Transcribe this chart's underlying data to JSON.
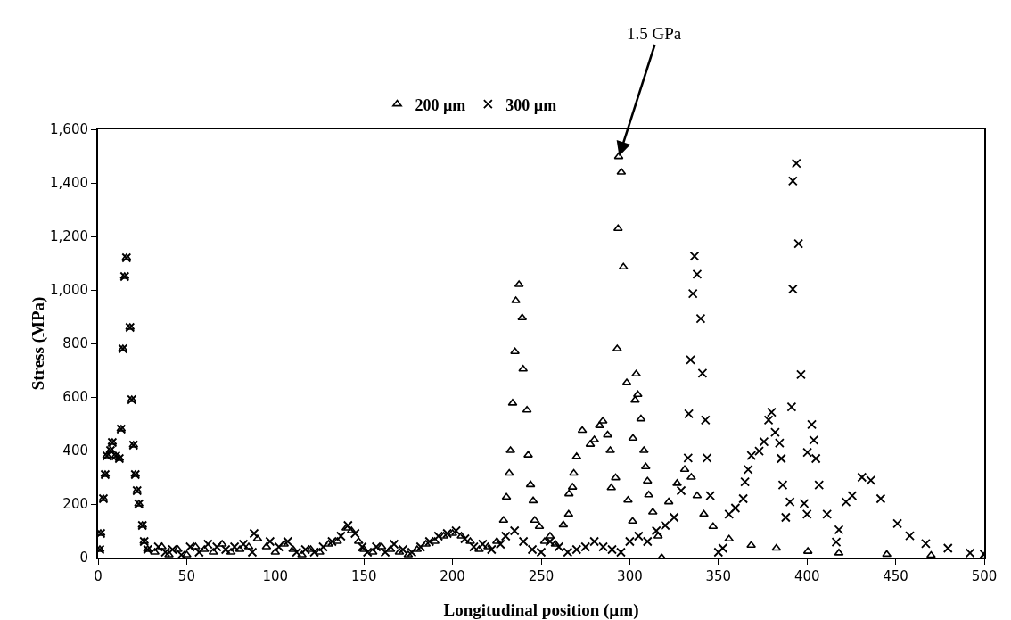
{
  "chart_data": {
    "type": "scatter",
    "xlabel": "Longitudinal position (µm)",
    "ylabel": "Stress (MPa)",
    "xlim": [
      0,
      500
    ],
    "xticks": [
      0,
      50,
      100,
      150,
      200,
      250,
      300,
      350,
      400,
      450,
      500
    ],
    "ylim": [
      0,
      1600
    ],
    "yticks": [
      0,
      200,
      400,
      600,
      800,
      {
        "value": 1000,
        "label": "1,000"
      },
      {
        "value": 1200,
        "label": "1,200"
      },
      {
        "value": 1400,
        "label": "1,400"
      },
      {
        "value": 1600,
        "label": "1,600"
      }
    ],
    "legend": "top",
    "grid": false,
    "annotations": [
      {
        "text": "1.5 GPa",
        "x": 294,
        "y": 1500
      }
    ],
    "series": [
      {
        "name": "200 µm",
        "color": "#000000",
        "marker": "triangle",
        "x": [
          228.8,
          230.4,
          232,
          232.7,
          233.9,
          235.2,
          235.7,
          237.5,
          239.3,
          239.8,
          242,
          242.7,
          244,
          245.5,
          246.4,
          249,
          252,
          255,
          258,
          262.5,
          265.5,
          265.7,
          267.7,
          268.4,
          270,
          273.2,
          277.7,
          280,
          283,
          284.8,
          287.5,
          289,
          289.6,
          292,
          292.9,
          293.4,
          293.75,
          295.2,
          296.4,
          298.3,
          299,
          301.6,
          301.8,
          303,
          303.6,
          304.5,
          306.3,
          308,
          309,
          310,
          310.7,
          313,
          316,
          318,
          322,
          326.7,
          331,
          334.7,
          338,
          341.8,
          347,
          356,
          368.5,
          382.7,
          400.5,
          418,
          445,
          470,
          500,
          1,
          1.5,
          3,
          4,
          5,
          7,
          8,
          10,
          12,
          13,
          14,
          15,
          16,
          18,
          19,
          20,
          21,
          22,
          23,
          25,
          26,
          28,
          32,
          36,
          40,
          45,
          50,
          55,
          60,
          65,
          70,
          75,
          80,
          85,
          90,
          95,
          100,
          105,
          110,
          115,
          120,
          125,
          130,
          135,
          140,
          143,
          147,
          150,
          155,
          160,
          165,
          170,
          175,
          180,
          185,
          190,
          195,
          200,
          205,
          210,
          215,
          220,
          225
        ],
        "values": [
          139,
          226,
          315,
          400,
          577,
          769,
          960,
          1020,
          896,
          704,
          551,
          383,
          272,
          212,
          139,
          116,
          60,
          80,
          50,
          122,
          162,
          238,
          263,
          315,
          377,
          475,
          423,
          440,
          493,
          510,
          458,
          400,
          261,
          298,
          780,
          1229,
          1498,
          1440,
          1086,
          653,
          214,
          136,
          446,
          588,
          686,
          609,
          518,
          400,
          339,
          286,
          234,
          170,
          80,
          0,
          208,
          277,
          329,
          300,
          231,
          162,
          116,
          69,
          46,
          35,
          23,
          17,
          12,
          8,
          5,
          30,
          90,
          220,
          310,
          380,
          400,
          430,
          380,
          370,
          480,
          780,
          1050,
          1120,
          860,
          590,
          420,
          310,
          250,
          200,
          120,
          60,
          30,
          20,
          40,
          10,
          30,
          10,
          40,
          30,
          20,
          50,
          20,
          30,
          40,
          70,
          40,
          20,
          50,
          30,
          10,
          30,
          20,
          50,
          60,
          110,
          100,
          60,
          30,
          20,
          40,
          30,
          20,
          10,
          30,
          50,
          60,
          80,
          90,
          80,
          60,
          30,
          40,
          60
        ]
      },
      {
        "name": "300 µm",
        "color": "#000000",
        "marker": "cross",
        "x": [
          34,
          38,
          42,
          47,
          52,
          57,
          62,
          67,
          72,
          77,
          82,
          87,
          88,
          97,
          102,
          107,
          112,
          117,
          122,
          127,
          132,
          137,
          141,
          145,
          149,
          152,
          157,
          162,
          167,
          172,
          177,
          182,
          187,
          192,
          197,
          202,
          207,
          212,
          217,
          222,
          227,
          230,
          235,
          240,
          245,
          250,
          255,
          260,
          265,
          270,
          275,
          280,
          285,
          290,
          295,
          300,
          305,
          310,
          315,
          320,
          325,
          329,
          332.9,
          333.3,
          334.3,
          335.6,
          336.5,
          338,
          340,
          341,
          342.7,
          343.6,
          345.4,
          350,
          352.5,
          356,
          359.6,
          364,
          365,
          366.8,
          368.6,
          373,
          375.7,
          378.3,
          380,
          382,
          384.5,
          385.5,
          386.3,
          388,
          390.4,
          391.3,
          392,
          392,
          394,
          395.2,
          396.6,
          398.4,
          400,
          400.2,
          402.7,
          403.8,
          405,
          406.8,
          411.3,
          416.5,
          418,
          422,
          425.5,
          431,
          436,
          441.6,
          451,
          458,
          467,
          479.5,
          492,
          500,
          1,
          1.5,
          3,
          4,
          5,
          7,
          8,
          10,
          12,
          13,
          14,
          15,
          16,
          18,
          19,
          20,
          21,
          22,
          23,
          25,
          26,
          28
        ],
        "values": [
          40,
          20,
          30,
          10,
          40,
          20,
          50,
          40,
          30,
          40,
          50,
          20,
          90,
          60,
          40,
          60,
          20,
          30,
          20,
          40,
          60,
          80,
          120,
          90,
          40,
          20,
          40,
          20,
          50,
          30,
          20,
          40,
          60,
          80,
          90,
          100,
          70,
          40,
          50,
          30,
          50,
          80,
          100,
          60,
          30,
          20,
          60,
          40,
          20,
          30,
          40,
          60,
          40,
          30,
          20,
          60,
          80,
          60,
          100,
          120,
          150,
          250,
          372,
          537,
          739,
          986,
          1126,
          1059,
          893,
          689,
          514,
          372,
          231,
          20,
          35,
          162,
          185,
          220,
          283,
          329,
          381,
          398,
          433,
          514,
          543,
          468,
          428,
          370,
          271,
          150,
          208,
          563,
          1003,
          1407,
          1473,
          1173,
          684,
          202,
          162,
          393,
          497,
          439,
          370,
          271,
          162,
          58,
          104,
          208,
          231,
          300,
          289,
          220,
          127,
          81,
          52,
          35,
          17,
          12,
          30,
          90,
          220,
          310,
          380,
          400,
          430,
          380,
          370,
          480,
          780,
          1050,
          1120,
          860,
          590,
          420,
          310,
          250,
          200,
          120,
          60,
          30
        ]
      }
    ]
  }
}
